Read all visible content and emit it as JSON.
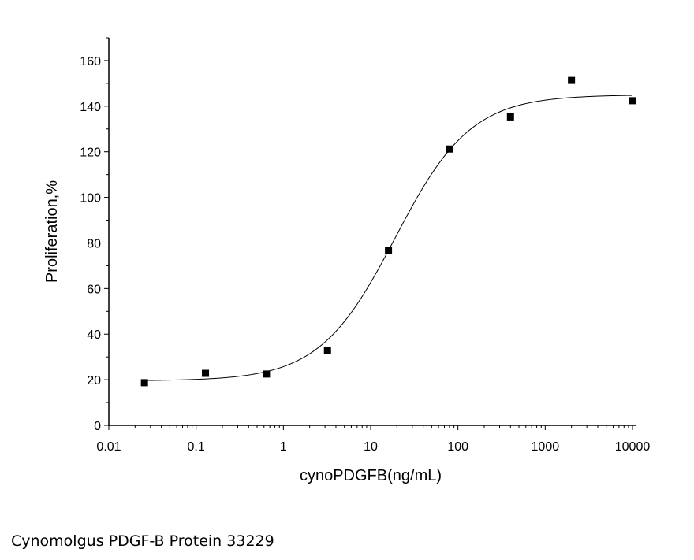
{
  "chart_data": {
    "type": "scatter",
    "title": "",
    "xlabel": "cynoPDGFB(ng/mL)",
    "ylabel": "Proliferation,%",
    "xscale": "log",
    "xlim": [
      0.01,
      10000
    ],
    "ylim": [
      0,
      170
    ],
    "xticks": [
      "0.01",
      "0.1",
      "1",
      "10",
      "100",
      "1000",
      "10000"
    ],
    "yticks": [
      "0",
      "20",
      "40",
      "60",
      "80",
      "100",
      "120",
      "140",
      "160"
    ],
    "grid": false,
    "marker": "square",
    "series": [
      {
        "x": [
          0.0256,
          0.128,
          0.64,
          3.2,
          16,
          80,
          400,
          2000,
          10000
        ],
        "y": [
          18.7,
          22.8,
          22.5,
          32.8,
          76.7,
          121.2,
          135.3,
          151.3,
          142.4
        ]
      }
    ],
    "fit": {
      "type": "4PL",
      "bottom": 19.5,
      "top": 145,
      "ec50": 19.1,
      "hill": 1.0
    },
    "colors": {
      "marker": "#000000",
      "line": "#000000"
    }
  },
  "caption": "Cynomolgus PDGF-B Protein 33229"
}
